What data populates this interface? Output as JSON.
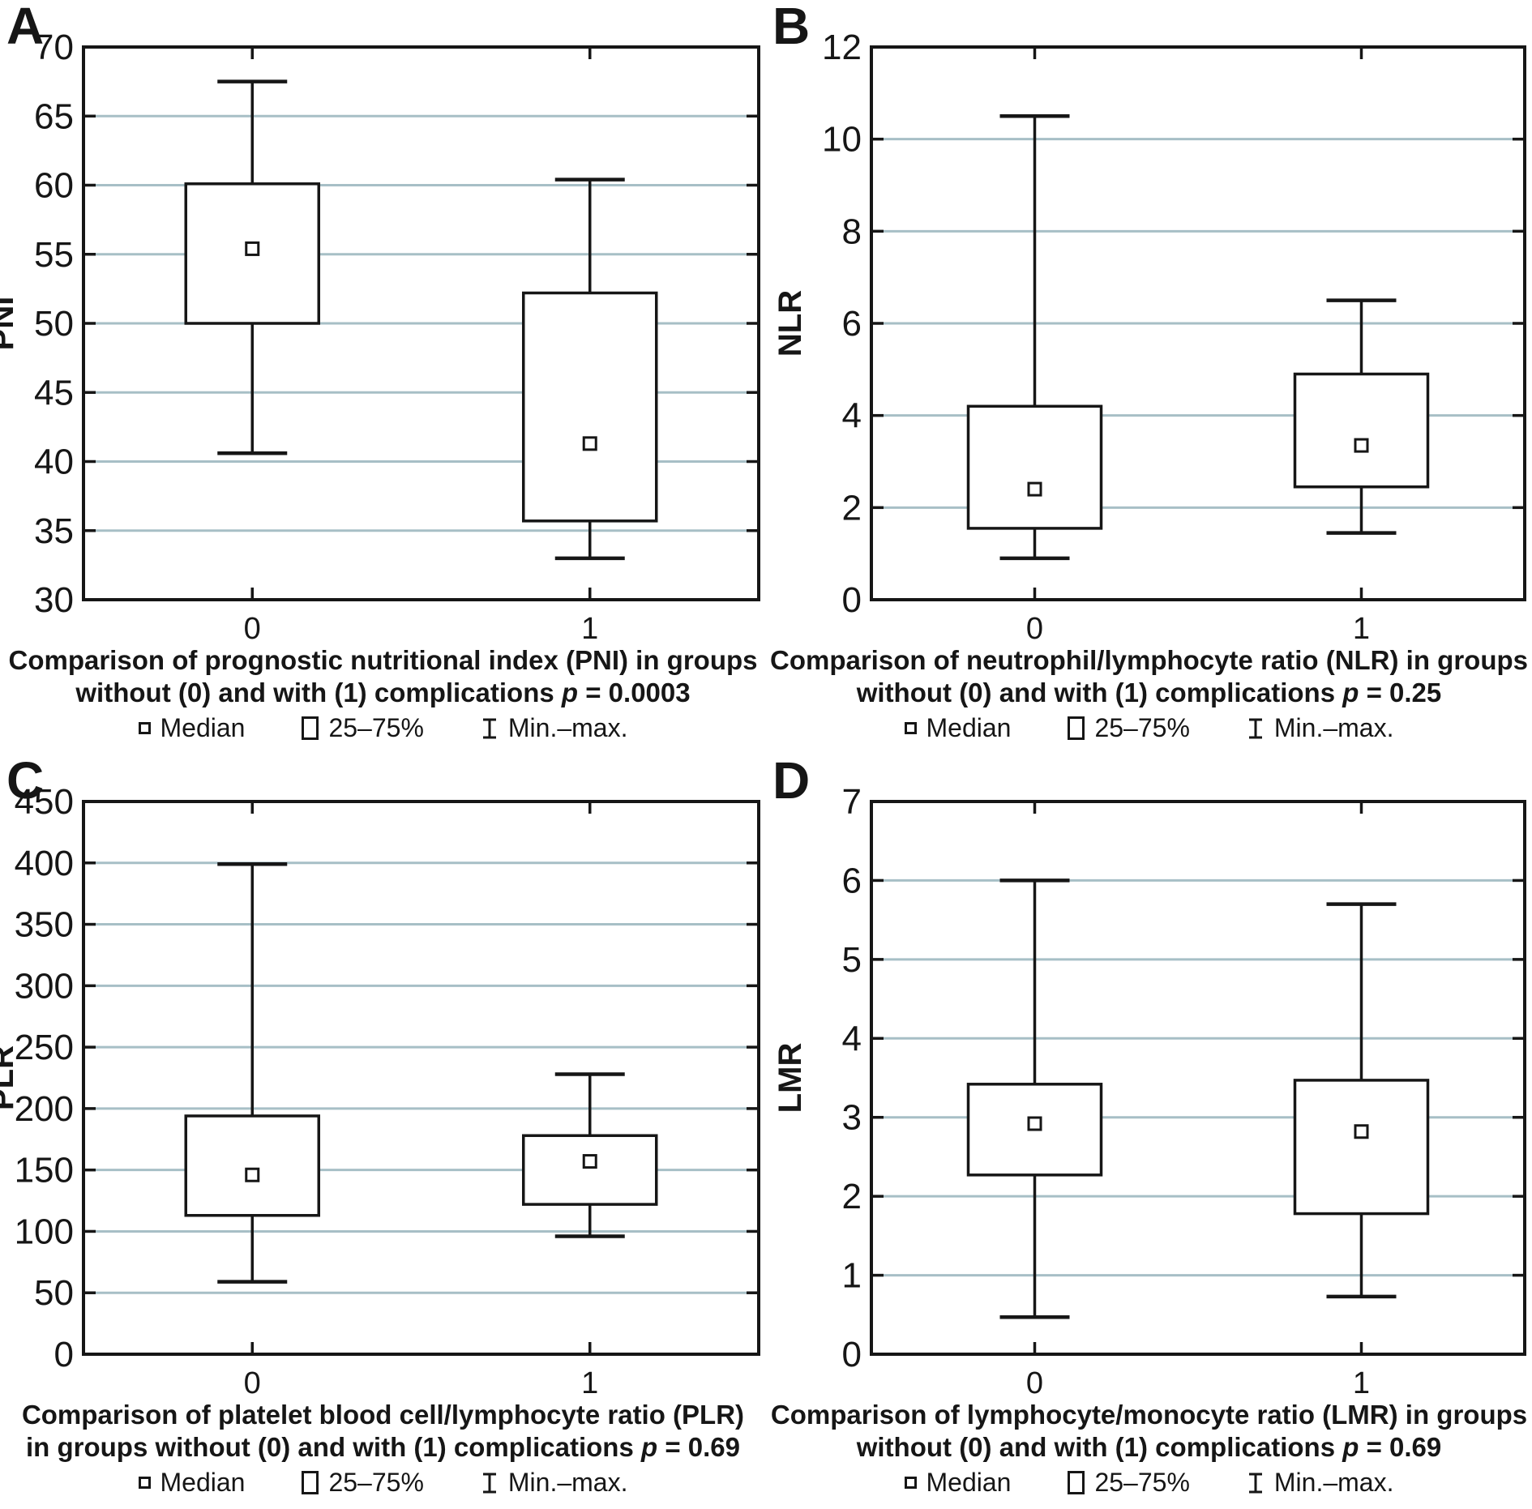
{
  "colors": {
    "axis": "#161616",
    "grid": "#a7bfc6",
    "background": "#ffffff"
  },
  "legend": {
    "median": "Median",
    "iqr": "25–75%",
    "minmax": "Min.–max."
  },
  "chart_data": [
    {
      "type": "box",
      "panel_label": "A",
      "ylabel": "PNI",
      "ylim": [
        30,
        70
      ],
      "ystep": 5,
      "grid": true,
      "legend_position": "bottom",
      "categories": [
        "0",
        "1"
      ],
      "series": [
        {
          "name": "0",
          "min": 40.6,
          "q1": 50.0,
          "median": 55.4,
          "q3": 60.1,
          "max": 67.5
        },
        {
          "name": "1",
          "min": 33.0,
          "q1": 35.7,
          "median": 41.3,
          "q3": 52.2,
          "max": 60.4
        }
      ],
      "caption": {
        "line1": "Comparison of prognostic nutritional index (PNI) in groups",
        "line2": "without (0) and with (1) complications",
        "p_symbol": "p",
        "p_value": "= 0.0003"
      }
    },
    {
      "type": "box",
      "panel_label": "B",
      "ylabel": "NLR",
      "ylim": [
        0,
        12
      ],
      "ystep": 2,
      "grid": true,
      "legend_position": "bottom",
      "categories": [
        "0",
        "1"
      ],
      "series": [
        {
          "name": "0",
          "min": 0.9,
          "q1": 1.55,
          "median": 2.4,
          "q3": 4.2,
          "max": 10.5
        },
        {
          "name": "1",
          "min": 1.45,
          "q1": 2.45,
          "median": 3.35,
          "q3": 4.9,
          "max": 6.5
        }
      ],
      "caption": {
        "line1": "Comparison of neutrophil/lymphocyte ratio (NLR) in groups",
        "line2": "without (0) and with (1) complications",
        "p_symbol": "p",
        "p_value": "= 0.25"
      }
    },
    {
      "type": "box",
      "panel_label": "C",
      "ylabel": "PLR",
      "ylim": [
        0,
        450
      ],
      "ystep": 50,
      "grid": true,
      "legend_position": "bottom",
      "categories": [
        "0",
        "1"
      ],
      "series": [
        {
          "name": "0",
          "min": 59,
          "q1": 113,
          "median": 146,
          "q3": 194,
          "max": 399
        },
        {
          "name": "1",
          "min": 96,
          "q1": 122,
          "median": 157,
          "q3": 178,
          "max": 228
        }
      ],
      "caption": {
        "line1": "Comparison of platelet blood cell/lymphocyte ratio (PLR)",
        "line2": "in groups without (0) and with (1) complications",
        "p_symbol": "p",
        "p_value": "= 0.69"
      }
    },
    {
      "type": "box",
      "panel_label": "D",
      "ylabel": "LMR",
      "ylim": [
        0,
        7
      ],
      "ystep": 1,
      "grid": true,
      "legend_position": "bottom",
      "categories": [
        "0",
        "1"
      ],
      "series": [
        {
          "name": "0",
          "min": 0.47,
          "q1": 2.27,
          "median": 2.92,
          "q3": 3.42,
          "max": 6.0
        },
        {
          "name": "1",
          "min": 0.73,
          "q1": 1.78,
          "median": 2.82,
          "q3": 3.47,
          "max": 5.7
        }
      ],
      "caption": {
        "line1": "Comparison of lymphocyte/monocyte ratio (LMR) in groups",
        "line2": "without (0) and with (1) complications",
        "p_symbol": "p",
        "p_value": "= 0.69"
      }
    }
  ]
}
